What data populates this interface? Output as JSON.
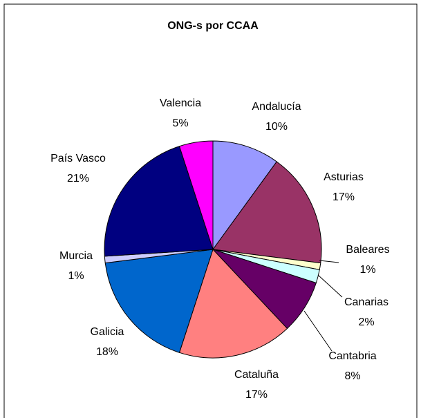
{
  "chart_data": {
    "type": "pie",
    "title": "ONG-s por CCAA",
    "categories": [
      "Andalucía",
      "Asturias",
      "Baleares",
      "Canarias",
      "Cantabria",
      "Cataluña",
      "Galicia",
      "Murcia",
      "País Vasco",
      "Valencia"
    ],
    "values": [
      10,
      17,
      1,
      2,
      8,
      17,
      18,
      1,
      21,
      5
    ],
    "value_labels": [
      "10%",
      "17%",
      "1%",
      "2%",
      "8%",
      "17%",
      "18%",
      "1%",
      "21%",
      "5%"
    ],
    "colors": [
      "#9999ff",
      "#993366",
      "#ffffcc",
      "#ccffff",
      "#660066",
      "#ff8080",
      "#0066cc",
      "#ccccff",
      "#000080",
      "#ff00ff"
    ]
  }
}
